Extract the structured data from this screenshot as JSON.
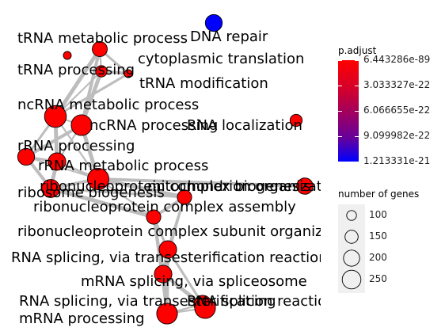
{
  "chart_data": {
    "type": "network",
    "colors": {
      "low": "#0000ff",
      "high": "#ff0000",
      "edge": "#bdbdbd",
      "node_stroke": "#000000"
    },
    "color_range": [
      1.213331e-21,
      6.443286e-89
    ],
    "nodes": [
      {
        "id": "n1",
        "label": "tRNA metabolic process",
        "count": 160,
        "color": "#ff0000"
      },
      {
        "id": "n2",
        "label": "DNA repair",
        "count": 190,
        "color": "#0000ff"
      },
      {
        "id": "n3",
        "label": "cytoplasmic translation",
        "count": 70,
        "color": "#ff0000"
      },
      {
        "id": "n4",
        "label": "tRNA processing",
        "count": 110,
        "color": "#ff0000"
      },
      {
        "id": "n5",
        "label": "tRNA modification",
        "count": 70,
        "color": "#ff0000"
      },
      {
        "id": "n6",
        "label": "ncRNA metabolic process",
        "count": 280,
        "color": "#ff0000"
      },
      {
        "id": "n7",
        "label": "ncRNA processing",
        "count": 260,
        "color": "#ff0000"
      },
      {
        "id": "n8",
        "label": "RNA localization",
        "count": 120,
        "color": "#ff0000"
      },
      {
        "id": "n9",
        "label": "rRNA processing",
        "count": 190,
        "color": "#ff0000"
      },
      {
        "id": "n10",
        "label": "rRNA metabolic process",
        "count": 200,
        "color": "#ff0000"
      },
      {
        "id": "n11",
        "label": "ribonucleoprotein complex biogenesis",
        "count": 270,
        "color": "#ff0000"
      },
      {
        "id": "n12",
        "label": "mitochondrion organization",
        "count": 180,
        "color": "#ff0000"
      },
      {
        "id": "n13",
        "label": "ribosome biogenesis",
        "count": 210,
        "color": "#ff0000"
      },
      {
        "id": "n14",
        "label": "ribonucleoprotein complex assembly",
        "count": 150,
        "color": "#ff0000"
      },
      {
        "id": "n15",
        "label": "ribonucleoprotein complex subunit organization",
        "count": 150,
        "color": "#ff0000"
      },
      {
        "id": "n16",
        "label": "RNA splicing, via transesterification reactions with bulged adenosine as nucleophile",
        "count": 200,
        "color": "#ff0000"
      },
      {
        "id": "n17",
        "label": "mRNA splicing, via spliceosome",
        "count": 200,
        "color": "#ff0000"
      },
      {
        "id": "n18",
        "label": "RNA splicing, via transesterification reactions",
        "count": 200,
        "color": "#ff0000"
      },
      {
        "id": "n19",
        "label": "mRNA processing",
        "count": 260,
        "color": "#ff0000"
      },
      {
        "id": "n20",
        "label": "RNA splicing",
        "count": 260,
        "color": "#ff0000"
      }
    ],
    "edges": [
      [
        "n1",
        "n4"
      ],
      [
        "n1",
        "n5"
      ],
      [
        "n4",
        "n5"
      ],
      [
        "n1",
        "n6"
      ],
      [
        "n4",
        "n6"
      ],
      [
        "n5",
        "n6"
      ],
      [
        "n1",
        "n7"
      ],
      [
        "n4",
        "n7"
      ],
      [
        "n6",
        "n7"
      ],
      [
        "n6",
        "n9"
      ],
      [
        "n7",
        "n9"
      ],
      [
        "n6",
        "n10"
      ],
      [
        "n7",
        "n10"
      ],
      [
        "n9",
        "n10"
      ],
      [
        "n9",
        "n13"
      ],
      [
        "n10",
        "n13"
      ],
      [
        "n9",
        "n11"
      ],
      [
        "n10",
        "n11"
      ],
      [
        "n11",
        "n13"
      ],
      [
        "n11",
        "n14"
      ],
      [
        "n11",
        "n15"
      ],
      [
        "n13",
        "n14"
      ],
      [
        "n14",
        "n15"
      ],
      [
        "n13",
        "n15"
      ],
      [
        "n14",
        "n17"
      ],
      [
        "n15",
        "n16"
      ],
      [
        "n15",
        "n17"
      ],
      [
        "n16",
        "n17"
      ],
      [
        "n16",
        "n18"
      ],
      [
        "n17",
        "n18"
      ],
      [
        "n16",
        "n19"
      ],
      [
        "n17",
        "n19"
      ],
      [
        "n18",
        "n19"
      ],
      [
        "n16",
        "n20"
      ],
      [
        "n17",
        "n20"
      ],
      [
        "n18",
        "n20"
      ],
      [
        "n19",
        "n20"
      ],
      [
        "n14",
        "n16"
      ],
      [
        "n12",
        "n11"
      ],
      [
        "n7",
        "n11"
      ],
      [
        "n6",
        "n11"
      ],
      [
        "n15",
        "n19"
      ]
    ],
    "legend_color": {
      "title": "p.adjust",
      "ticks": [
        "6.443286e-89",
        "3.033327e-22",
        "6.066655e-22",
        "9.099982e-22",
        "1.213331e-21"
      ]
    },
    "legend_size": {
      "title": "number of genes",
      "values": [
        100,
        150,
        200,
        250
      ]
    }
  }
}
